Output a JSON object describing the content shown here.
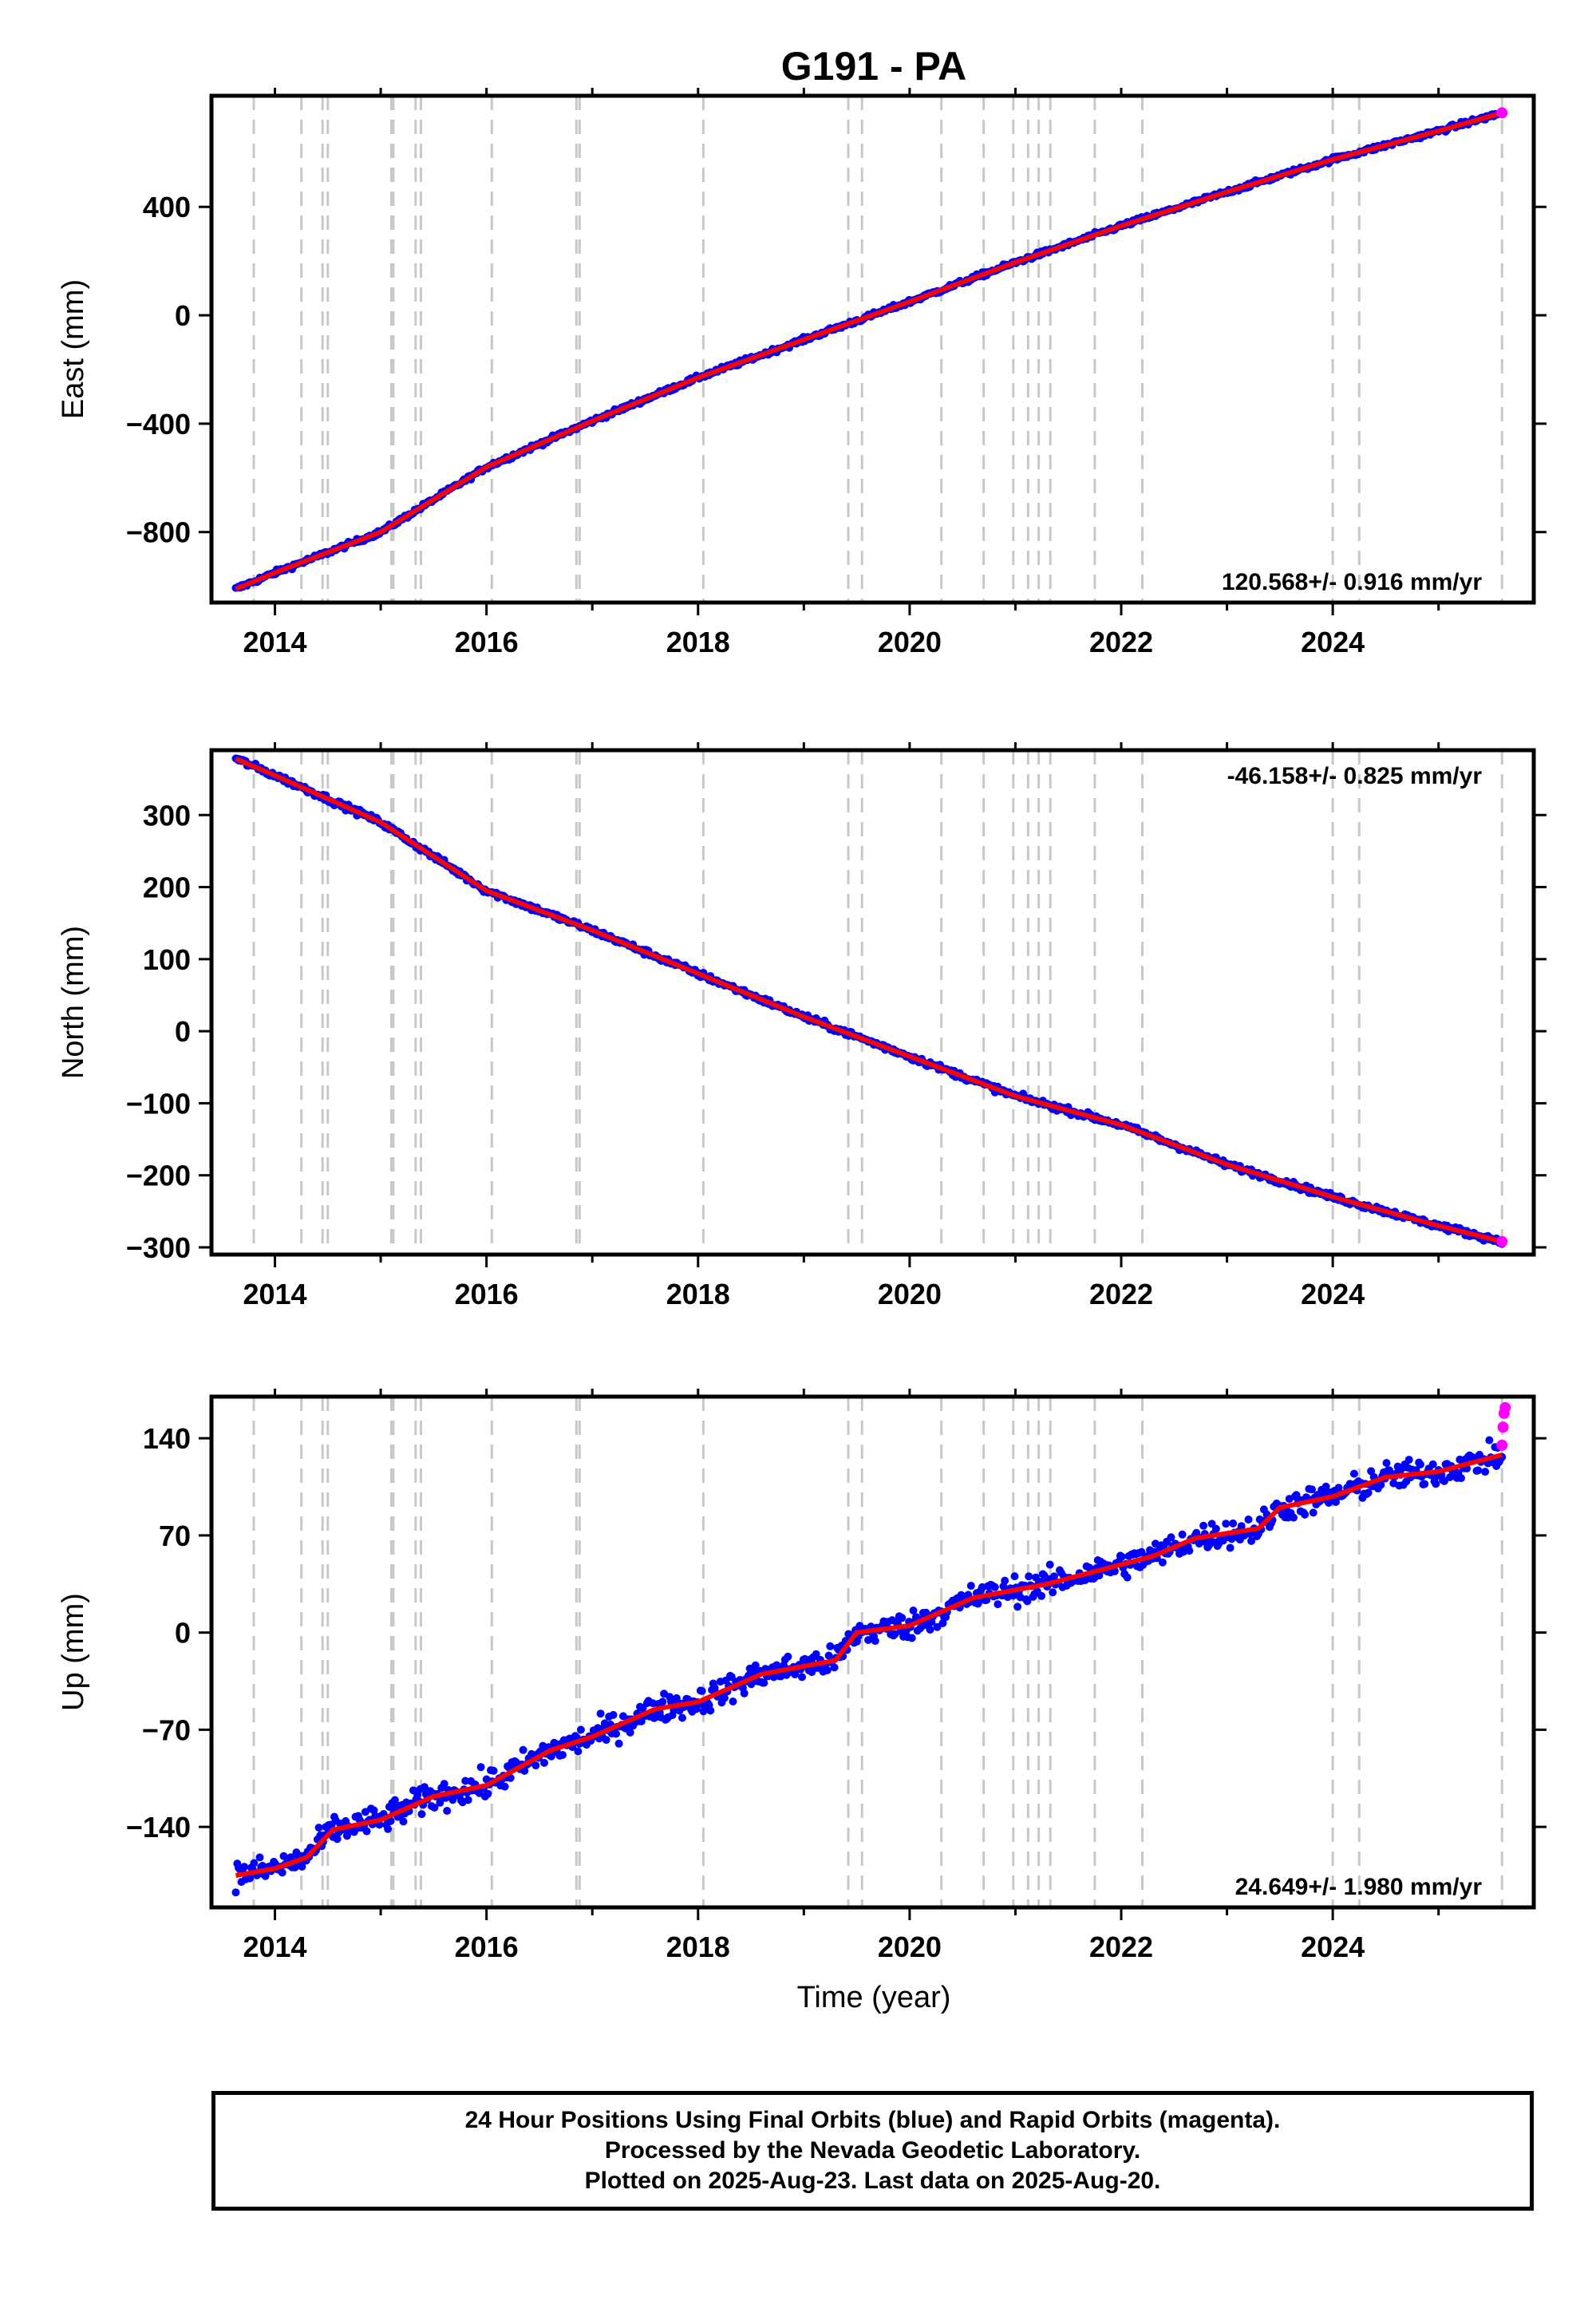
{
  "title": "G191 - PA",
  "xlabel": "Time (year)",
  "x_tick_labels": [
    "2014",
    "2016",
    "2018",
    "2020",
    "2022",
    "2024"
  ],
  "colors": {
    "final_orbits": "#0000ff",
    "rapid_orbits": "#ff00ff",
    "model": "#ff0000",
    "event_lines": "#c8c8c8"
  },
  "footer": {
    "line1": "24 Hour Positions Using Final Orbits (blue) and Rapid Orbits (magenta).",
    "line2": "Processed by the Nevada Geodetic Laboratory.",
    "line3": "Plotted on 2025-Aug-23. Last data on 2025-Aug-20."
  },
  "chart_data": [
    {
      "type": "scatter",
      "ylabel": "East (mm)",
      "xlim": [
        2013.4,
        2025.9
      ],
      "ylim": [
        -1060,
        810
      ],
      "y_ticks": [
        -800,
        -400,
        0,
        400
      ],
      "y_tick_labels": [
        "−800",
        "−400",
        "0",
        "400"
      ],
      "rate_label": "120.568+/- 0.916 mm/yr",
      "rate_position": "bottom-right",
      "event_lines": [
        2013.8,
        2014.25,
        2014.45,
        2014.5,
        2015.1,
        2015.12,
        2015.33,
        2015.38,
        2016.05,
        2016.85,
        2016.88,
        2018.05,
        2019.42,
        2019.55,
        2020.3,
        2020.7,
        2020.98,
        2021.12,
        2021.22,
        2021.33,
        2021.75,
        2022.2,
        2024.0,
        2024.25,
        2025.6
      ],
      "series": [
        {
          "values_x": [
            2013.63,
            2014.0,
            2015.0,
            2016.0,
            2017.0,
            2018.0,
            2019.0,
            2020.0,
            2021.0,
            2022.0,
            2023.0,
            2024.0,
            2025.0,
            2025.6
          ],
          "values_y": [
            -1010,
            -950,
            -800,
            -560,
            -390,
            -230,
            -90,
            50,
            195,
            330,
            455,
            575,
            680,
            747
          ]
        }
      ],
      "noise_mm": 6
    },
    {
      "type": "scatter",
      "ylabel": "North (mm)",
      "xlim": [
        2013.4,
        2025.9
      ],
      "ylim": [
        -310,
        390
      ],
      "y_ticks": [
        -300,
        -200,
        -100,
        0,
        100,
        200,
        300
      ],
      "y_tick_labels": [
        "−300",
        "−200",
        "−100",
        "0",
        "100",
        "200",
        "300"
      ],
      "rate_label": "-46.158+/- 0.825 mm/yr",
      "rate_position": "top-right",
      "event_lines": [
        2013.8,
        2014.25,
        2014.45,
        2014.5,
        2015.1,
        2015.12,
        2015.33,
        2015.38,
        2016.05,
        2016.85,
        2016.88,
        2018.05,
        2019.42,
        2019.55,
        2020.3,
        2020.7,
        2020.98,
        2021.12,
        2021.22,
        2021.33,
        2021.75,
        2022.2,
        2024.0,
        2024.25,
        2025.6
      ],
      "series": [
        {
          "values_x": [
            2013.63,
            2014.0,
            2015.0,
            2016.0,
            2017.0,
            2018.0,
            2019.0,
            2020.0,
            2021.0,
            2022.0,
            2023.0,
            2024.0,
            2025.0,
            2025.6
          ],
          "values_y": [
            378,
            355,
            290,
            195,
            140,
            80,
            20,
            -35,
            -90,
            -130,
            -185,
            -230,
            -270,
            -292
          ]
        }
      ],
      "noise_mm": 3
    },
    {
      "type": "scatter",
      "ylabel": "Up (mm)",
      "xlim": [
        2013.4,
        2025.9
      ],
      "ylim": [
        -198,
        170
      ],
      "y_ticks": [
        -140,
        -70,
        0,
        70,
        140
      ],
      "y_tick_labels": [
        "−140",
        "−70",
        "0",
        "70",
        "140"
      ],
      "rate_label": "24.649+/- 1.980 mm/yr",
      "rate_position": "bottom-right",
      "event_lines": [
        2013.8,
        2014.25,
        2014.45,
        2014.5,
        2015.1,
        2015.12,
        2015.33,
        2015.38,
        2016.05,
        2016.85,
        2016.88,
        2018.05,
        2019.42,
        2019.55,
        2020.3,
        2020.7,
        2020.98,
        2021.12,
        2021.22,
        2021.33,
        2021.75,
        2022.2,
        2024.0,
        2024.25,
        2025.6
      ],
      "series": [
        {
          "values_x": [
            2013.63,
            2014.0,
            2014.3,
            2014.55,
            2015.0,
            2015.5,
            2016.0,
            2016.6,
            2017.0,
            2017.6,
            2018.0,
            2018.6,
            2019.3,
            2019.5,
            2020.0,
            2020.6,
            2021.3,
            2021.8,
            2022.3,
            2022.7,
            2023.3,
            2023.5,
            2024.0,
            2024.5,
            2025.0,
            2025.6
          ],
          "values_y": [
            -175,
            -170,
            -162,
            -142,
            -135,
            -118,
            -110,
            -85,
            -75,
            -55,
            -50,
            -30,
            -20,
            0,
            5,
            25,
            35,
            45,
            55,
            68,
            75,
            90,
            98,
            112,
            116,
            128
          ]
        }
      ],
      "rapid_points": {
        "values_x": [
          2025.6,
          2025.61,
          2025.62,
          2025.63
        ],
        "values_y": [
          135,
          148,
          158,
          162
        ]
      },
      "noise_mm": 7
    }
  ]
}
